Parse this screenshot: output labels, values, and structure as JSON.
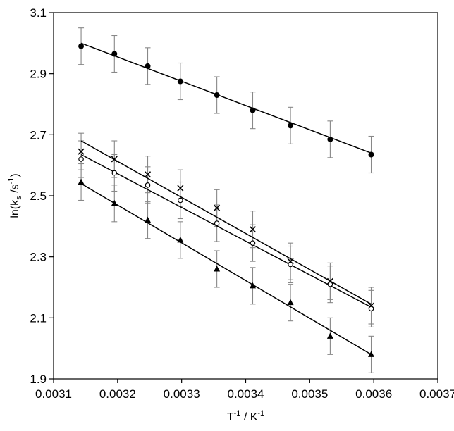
{
  "chart_data": {
    "type": "scatter",
    "xlabel": {
      "base": "T",
      "sup1": "-1",
      "mid": " / K",
      "sup2": "-1"
    },
    "ylabel": {
      "pre": "ln(k",
      "sub": "s",
      "mid": " /s",
      "sup": "-1",
      "post": ")"
    },
    "xlim": [
      0.0031,
      0.0037
    ],
    "ylim": [
      1.9,
      3.1
    ],
    "x_ticks": [
      0.0031,
      0.0032,
      0.0033,
      0.0034,
      0.0035,
      0.0036,
      0.0037
    ],
    "x_tick_labels": [
      "0.0031",
      "0.0032",
      "0.0033",
      "0.0034",
      "0.0035",
      "0.0036",
      "0.0037"
    ],
    "y_ticks": [
      1.9,
      2.1,
      2.3,
      2.5,
      2.7,
      2.9,
      3.1
    ],
    "y_tick_labels": [
      "1.9",
      "2.1",
      "2.3",
      "2.5",
      "2.7",
      "2.9",
      "3.1"
    ],
    "grid": false,
    "legend": false,
    "error_bar": 0.06,
    "series": [
      {
        "marker": "filled-circle",
        "x": [
          0.003143,
          0.003195,
          0.003247,
          0.003298,
          0.003355,
          0.003411,
          0.00347,
          0.003532,
          0.003596
        ],
        "y": [
          2.99,
          2.965,
          2.925,
          2.875,
          2.83,
          2.78,
          2.73,
          2.685,
          2.635
        ],
        "fit": [
          [
            0.003143,
            3.0
          ],
          [
            0.003596,
            2.64
          ]
        ]
      },
      {
        "marker": "cross",
        "x": [
          0.003143,
          0.003195,
          0.003247,
          0.003298,
          0.003355,
          0.003411,
          0.00347,
          0.003532,
          0.003596
        ],
        "y": [
          2.645,
          2.62,
          2.57,
          2.525,
          2.46,
          2.39,
          2.285,
          2.22,
          2.14
        ],
        "fit": [
          [
            0.003143,
            2.68
          ],
          [
            0.003596,
            2.145
          ]
        ]
      },
      {
        "marker": "open-circle",
        "x": [
          0.003143,
          0.003195,
          0.003247,
          0.003298,
          0.003355,
          0.003411,
          0.00347,
          0.003532,
          0.003596
        ],
        "y": [
          2.62,
          2.575,
          2.535,
          2.485,
          2.41,
          2.345,
          2.275,
          2.21,
          2.13
        ],
        "fit": [
          [
            0.003143,
            2.635
          ],
          [
            0.003596,
            2.135
          ]
        ]
      },
      {
        "marker": "filled-triangle",
        "x": [
          0.003143,
          0.003195,
          0.003247,
          0.003298,
          0.003355,
          0.003411,
          0.00347,
          0.003532,
          0.003596
        ],
        "y": [
          2.545,
          2.475,
          2.42,
          2.355,
          2.26,
          2.205,
          2.15,
          2.04,
          1.98
        ],
        "fit": [
          [
            0.003143,
            2.54
          ],
          [
            0.003596,
            1.98
          ]
        ]
      }
    ]
  }
}
